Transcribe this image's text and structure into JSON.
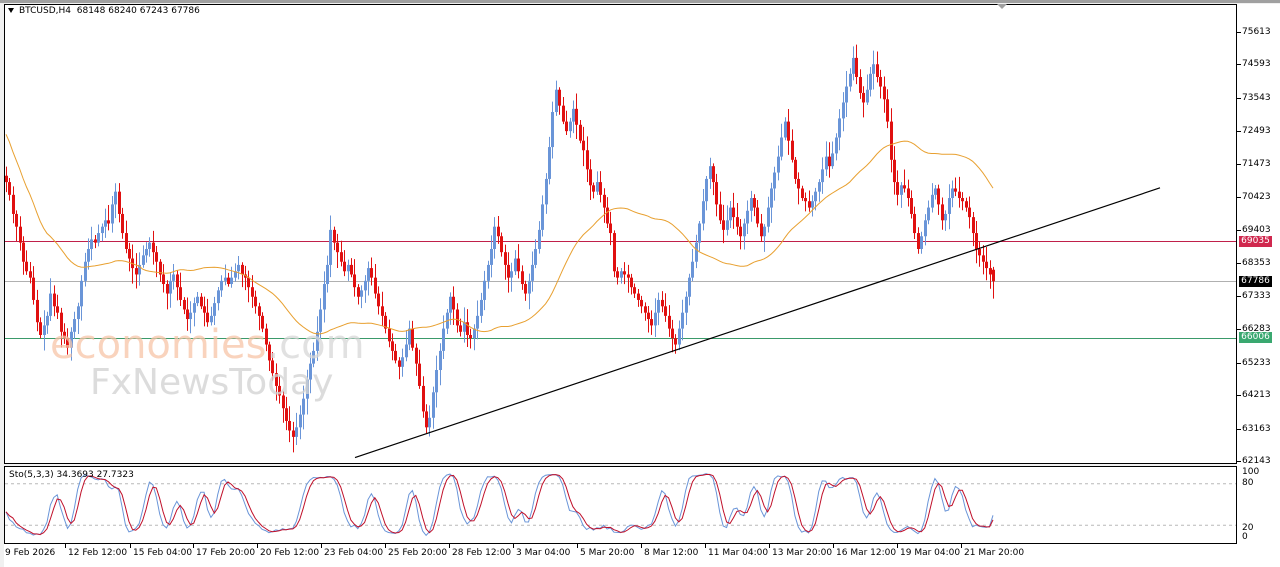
{
  "header": {
    "symbol": "BTCUSD,H4",
    "ohlc": "68148 68240 67243 67786",
    "title": "BTCUSD,H4  68148 68240 67243 67786"
  },
  "indicator": {
    "title": "Sto(5,3,3) 34.3693 27.7323",
    "levels": [
      "100",
      "80",
      "20",
      "0"
    ]
  },
  "price_axis": {
    "labels": [
      "75613",
      "74593",
      "73543",
      "72493",
      "71473",
      "70423",
      "69403",
      "68353",
      "67333",
      "66283",
      "65233",
      "64213",
      "63163",
      "62143"
    ],
    "tags": {
      "resistance": "69035",
      "current": "67786",
      "support": "66006"
    }
  },
  "time_axis": {
    "labels": [
      "9 Feb 2026",
      "12 Feb 12:00",
      "15 Feb 04:00",
      "17 Feb 20:00",
      "20 Feb 12:00",
      "23 Feb 04:00",
      "25 Feb 20:00",
      "28 Feb 12:00",
      "3 Mar 04:00",
      "5 Mar 20:00",
      "8 Mar 12:00",
      "11 Mar 04:00",
      "13 Mar 20:00",
      "16 Mar 12:00",
      "19 Mar 04:00",
      "21 Mar 20:00"
    ]
  },
  "watermark": {
    "line1": "economies",
    "line1_suffix": ".com",
    "line2": "FxNewsToday"
  },
  "colors": {
    "bull": "#6a95d8",
    "bear": "#e01010",
    "ma": "#e8a030",
    "resistance": "#c0204a",
    "support": "#3a9a6a",
    "current": "#b0b0b0",
    "trendline": "#000000",
    "sto_main": "#6a95d8",
    "sto_signal": "#c0102a"
  },
  "chart_data": {
    "type": "candlestick",
    "title": "BTCUSD,H4",
    "symbol": "BTCUSD",
    "timeframe": "H4",
    "last_ohlc": {
      "open": 68148,
      "high": 68240,
      "low": 67243,
      "close": 67786
    },
    "ylim": [
      61900,
      76300
    ],
    "yticks": [
      75613,
      74593,
      73543,
      72493,
      71473,
      70423,
      69403,
      68353,
      67333,
      66283,
      65233,
      64213,
      63163,
      62143
    ],
    "xticks": [
      "9 Feb 2026",
      "12 Feb 12:00",
      "15 Feb 04:00",
      "17 Feb 20:00",
      "20 Feb 12:00",
      "23 Feb 04:00",
      "25 Feb 20:00",
      "28 Feb 12:00",
      "3 Mar 04:00",
      "5 Mar 20:00",
      "8 Mar 12:00",
      "11 Mar 04:00",
      "13 Mar 20:00",
      "16 Mar 12:00",
      "19 Mar 04:00",
      "21 Mar 20:00"
    ],
    "horizontal_lines": [
      {
        "name": "resistance",
        "value": 69035,
        "color": "#c0204a"
      },
      {
        "name": "current_price",
        "value": 67786,
        "color": "#b0b0b0"
      },
      {
        "name": "support",
        "value": 66006,
        "color": "#3a9a6a"
      }
    ],
    "trendline": {
      "from": {
        "x_index": 87,
        "price": 62250
      },
      "to": {
        "x_index": 288,
        "price": 70720
      }
    },
    "closes": [
      70900,
      70500,
      69900,
      69500,
      69000,
      68400,
      68100,
      67900,
      67200,
      66500,
      66100,
      66400,
      66700,
      67400,
      67000,
      66800,
      66200,
      66000,
      65700,
      66200,
      66600,
      67000,
      67800,
      68400,
      68800,
      69100,
      69000,
      69300,
      69500,
      69700,
      69600,
      70200,
      70600,
      69900,
      69300,
      68800,
      68500,
      68200,
      68000,
      68300,
      68600,
      68800,
      69000,
      68700,
      68400,
      68000,
      67700,
      67400,
      67800,
      68000,
      67600,
      67200,
      66900,
      66600,
      66800,
      67100,
      67300,
      67000,
      66800,
      66500,
      66700,
      67100,
      67500,
      67800,
      67900,
      67700,
      67900,
      68100,
      68300,
      68000,
      67900,
      67600,
      67300,
      67000,
      66700,
      66300,
      65800,
      65300,
      64900,
      64500,
      64200,
      63800,
      63400,
      63100,
      62900,
      63200,
      63600,
      64100,
      64700,
      65200,
      65600,
      66200,
      66900,
      67700,
      68300,
      69400,
      69000,
      68700,
      68400,
      68100,
      68300,
      68000,
      67600,
      67300,
      67500,
      67800,
      68200,
      67900,
      67400,
      67000,
      66700,
      66300,
      65900,
      65600,
      65300,
      65100,
      65400,
      65800,
      66300,
      65700,
      65200,
      64500,
      63700,
      63200,
      63500,
      64300,
      65000,
      65600,
      66300,
      66800,
      67300,
      66900,
      66400,
      66200,
      66500,
      66100,
      66000,
      66300,
      66700,
      67200,
      67800,
      68300,
      68800,
      69500,
      69200,
      68700,
      68300,
      67900,
      68100,
      68500,
      68100,
      67700,
      67400,
      67800,
      68300,
      68800,
      69400,
      70200,
      71000,
      72000,
      73100,
      73800,
      73300,
      72800,
      72500,
      72800,
      73200,
      72700,
      72200,
      71900,
      71300,
      70800,
      70600,
      70900,
      70500,
      70100,
      69600,
      69300,
      68100,
      67900,
      68100,
      68000,
      67900,
      67600,
      67400,
      67200,
      67000,
      66800,
      66600,
      66400,
      66800,
      67200,
      67000,
      66700,
      66300,
      66000,
      65800,
      66300,
      66800,
      67300,
      67900,
      68400,
      69000,
      69600,
      70300,
      71000,
      71400,
      70900,
      70200,
      69700,
      69400,
      69700,
      70100,
      69800,
      69500,
      69200,
      69600,
      70000,
      70400,
      70100,
      69600,
      69200,
      69500,
      70100,
      70700,
      71200,
      71700,
      72300,
      72800,
      72200,
      71600,
      71000,
      70700,
      70400,
      70300,
      70100,
      70300,
      70600,
      70900,
      71300,
      71700,
      71400,
      71800,
      72300,
      72900,
      73400,
      73900,
      74300,
      74800,
      74200,
      73700,
      73400,
      73800,
      74300,
      74600,
      74200,
      73900,
      73500,
      72800,
      71600,
      70900,
      70500,
      70800,
      70700,
      70400,
      69900,
      69300,
      68800,
      69200,
      69700,
      70100,
      70500,
      70700,
      70200,
      69700,
      69900,
      70400,
      70700,
      70600,
      70400,
      70300,
      70100,
      69800,
      69300,
      68800,
      68600,
      68400,
      68200,
      68000,
      67786
    ],
    "moving_average": {
      "name": "MA",
      "color": "#e8a030"
    },
    "stochastic": {
      "name": "Sto(5,3,3)",
      "main": 34.3693,
      "signal": 27.7323,
      "levels": [
        80,
        20
      ],
      "range": [
        0,
        100
      ]
    }
  }
}
